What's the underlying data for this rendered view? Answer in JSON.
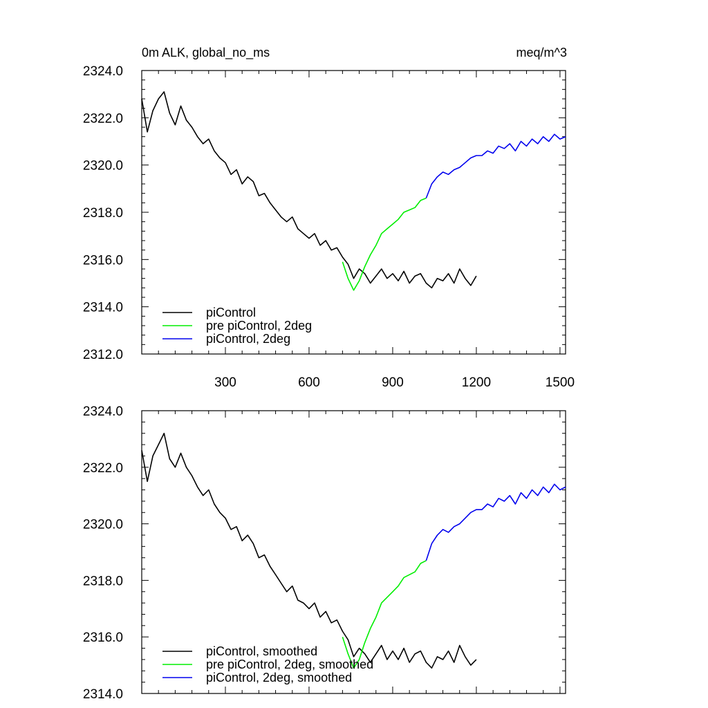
{
  "chart_data": [
    {
      "type": "line",
      "title_left": "0m ALK, global_no_ms",
      "title_right": "meq/m^3",
      "xlabel": "",
      "ylabel": "",
      "xlim": [
        0,
        1520
      ],
      "ylim": [
        2312.0,
        2324.0
      ],
      "x_ticks": [
        300,
        600,
        900,
        1200,
        1500
      ],
      "y_ticks": [
        "2312.0",
        "2314.0",
        "2316.0",
        "2318.0",
        "2320.0",
        "2322.0",
        "2324.0"
      ],
      "grid": false,
      "legend_position": "bottom-left",
      "series": [
        {
          "name": "piControl",
          "color": "#000000",
          "x": [
            0,
            20,
            40,
            60,
            80,
            100,
            120,
            140,
            160,
            180,
            200,
            220,
            240,
            260,
            280,
            300,
            320,
            340,
            360,
            380,
            400,
            420,
            440,
            460,
            480,
            500,
            520,
            540,
            560,
            580,
            600,
            620,
            640,
            660,
            680,
            700,
            720,
            740,
            760,
            780,
            800,
            820,
            840,
            860,
            880,
            900,
            920,
            940,
            960,
            980,
            1000,
            1020,
            1040,
            1060,
            1080,
            1100,
            1120,
            1140,
            1160,
            1180,
            1200
          ],
          "y": [
            2322.8,
            2321.4,
            2322.3,
            2322.8,
            2323.1,
            2322.2,
            2321.7,
            2322.5,
            2321.9,
            2321.6,
            2321.2,
            2320.9,
            2321.1,
            2320.6,
            2320.3,
            2320.1,
            2319.6,
            2319.8,
            2319.2,
            2319.5,
            2319.3,
            2318.7,
            2318.8,
            2318.4,
            2318.1,
            2317.8,
            2317.6,
            2317.8,
            2317.3,
            2317.1,
            2316.9,
            2317.1,
            2316.6,
            2316.8,
            2316.4,
            2316.5,
            2316.1,
            2315.8,
            2315.2,
            2315.6,
            2315.4,
            2315.0,
            2315.3,
            2315.6,
            2315.2,
            2315.4,
            2315.1,
            2315.5,
            2315.0,
            2315.3,
            2315.4,
            2315.0,
            2314.8,
            2315.2,
            2315.1,
            2315.4,
            2315.0,
            2315.6,
            2315.2,
            2314.9,
            2315.3
          ]
        },
        {
          "name": "pre piControl, 2deg",
          "color": "#00ee00",
          "x": [
            720,
            740,
            760,
            780,
            800,
            820,
            840,
            860,
            880,
            900,
            920,
            940,
            960,
            980,
            1000,
            1020
          ],
          "y": [
            2315.9,
            2315.2,
            2314.7,
            2315.1,
            2315.7,
            2316.2,
            2316.6,
            2317.1,
            2317.3,
            2317.5,
            2317.7,
            2318.0,
            2318.1,
            2318.2,
            2318.5,
            2318.6
          ]
        },
        {
          "name": "piControl, 2deg",
          "color": "#0000ee",
          "x": [
            1020,
            1040,
            1060,
            1080,
            1100,
            1120,
            1140,
            1160,
            1180,
            1200,
            1220,
            1240,
            1260,
            1280,
            1300,
            1320,
            1340,
            1360,
            1380,
            1400,
            1420,
            1440,
            1460,
            1480,
            1500,
            1520
          ],
          "y": [
            2318.6,
            2319.2,
            2319.5,
            2319.7,
            2319.6,
            2319.8,
            2319.9,
            2320.1,
            2320.3,
            2320.4,
            2320.4,
            2320.6,
            2320.5,
            2320.8,
            2320.7,
            2320.9,
            2320.6,
            2321.0,
            2320.8,
            2321.1,
            2320.9,
            2321.2,
            2321.0,
            2321.3,
            2321.1,
            2321.2
          ]
        }
      ]
    },
    {
      "type": "line",
      "title_left": "",
      "title_right": "",
      "xlabel": "",
      "ylabel": "",
      "xlim": [
        0,
        1520
      ],
      "ylim": [
        2314.0,
        2324.0
      ],
      "x_ticks": [
        300,
        600,
        900,
        1200,
        1500
      ],
      "y_ticks": [
        "2314.0",
        "2316.0",
        "2318.0",
        "2320.0",
        "2322.0",
        "2324.0"
      ],
      "grid": false,
      "legend_position": "bottom-left",
      "series": [
        {
          "name": "piControl, smoothed",
          "color": "#000000",
          "x": [
            0,
            20,
            40,
            60,
            80,
            100,
            120,
            140,
            160,
            180,
            200,
            220,
            240,
            260,
            280,
            300,
            320,
            340,
            360,
            380,
            400,
            420,
            440,
            460,
            480,
            500,
            520,
            540,
            560,
            580,
            600,
            620,
            640,
            660,
            680,
            700,
            720,
            740,
            760,
            780,
            800,
            820,
            840,
            860,
            880,
            900,
            920,
            940,
            960,
            980,
            1000,
            1020,
            1040,
            1060,
            1080,
            1100,
            1120,
            1140,
            1160,
            1180,
            1200
          ],
          "y": [
            2322.6,
            2321.5,
            2322.4,
            2322.8,
            2323.2,
            2322.3,
            2322.0,
            2322.5,
            2322.0,
            2321.7,
            2321.3,
            2321.0,
            2321.2,
            2320.7,
            2320.4,
            2320.2,
            2319.8,
            2319.9,
            2319.4,
            2319.6,
            2319.3,
            2318.8,
            2318.9,
            2318.5,
            2318.2,
            2317.9,
            2317.6,
            2317.8,
            2317.3,
            2317.2,
            2317.0,
            2317.2,
            2316.7,
            2316.9,
            2316.5,
            2316.6,
            2316.2,
            2315.9,
            2315.3,
            2315.6,
            2315.4,
            2315.1,
            2315.4,
            2315.7,
            2315.2,
            2315.5,
            2315.2,
            2315.6,
            2315.1,
            2315.4,
            2315.5,
            2315.1,
            2314.9,
            2315.3,
            2315.2,
            2315.5,
            2315.1,
            2315.7,
            2315.3,
            2315.0,
            2315.2
          ]
        },
        {
          "name": "pre piControl, 2deg, smoothed",
          "color": "#00ee00",
          "x": [
            720,
            740,
            760,
            780,
            800,
            820,
            840,
            860,
            880,
            900,
            920,
            940,
            960,
            980,
            1000,
            1020
          ],
          "y": [
            2316.0,
            2315.4,
            2314.9,
            2315.2,
            2315.8,
            2316.3,
            2316.7,
            2317.2,
            2317.4,
            2317.6,
            2317.8,
            2318.1,
            2318.2,
            2318.3,
            2318.6,
            2318.7
          ]
        },
        {
          "name": "piControl, 2deg, smoothed",
          "color": "#0000ee",
          "x": [
            1020,
            1040,
            1060,
            1080,
            1100,
            1120,
            1140,
            1160,
            1180,
            1200,
            1220,
            1240,
            1260,
            1280,
            1300,
            1320,
            1340,
            1360,
            1380,
            1400,
            1420,
            1440,
            1460,
            1480,
            1500,
            1520
          ],
          "y": [
            2318.7,
            2319.3,
            2319.6,
            2319.8,
            2319.7,
            2319.9,
            2320.0,
            2320.2,
            2320.4,
            2320.5,
            2320.5,
            2320.7,
            2320.6,
            2320.9,
            2320.8,
            2321.0,
            2320.7,
            2321.1,
            2320.9,
            2321.2,
            2321.0,
            2321.3,
            2321.1,
            2321.4,
            2321.2,
            2321.3
          ]
        }
      ]
    }
  ]
}
